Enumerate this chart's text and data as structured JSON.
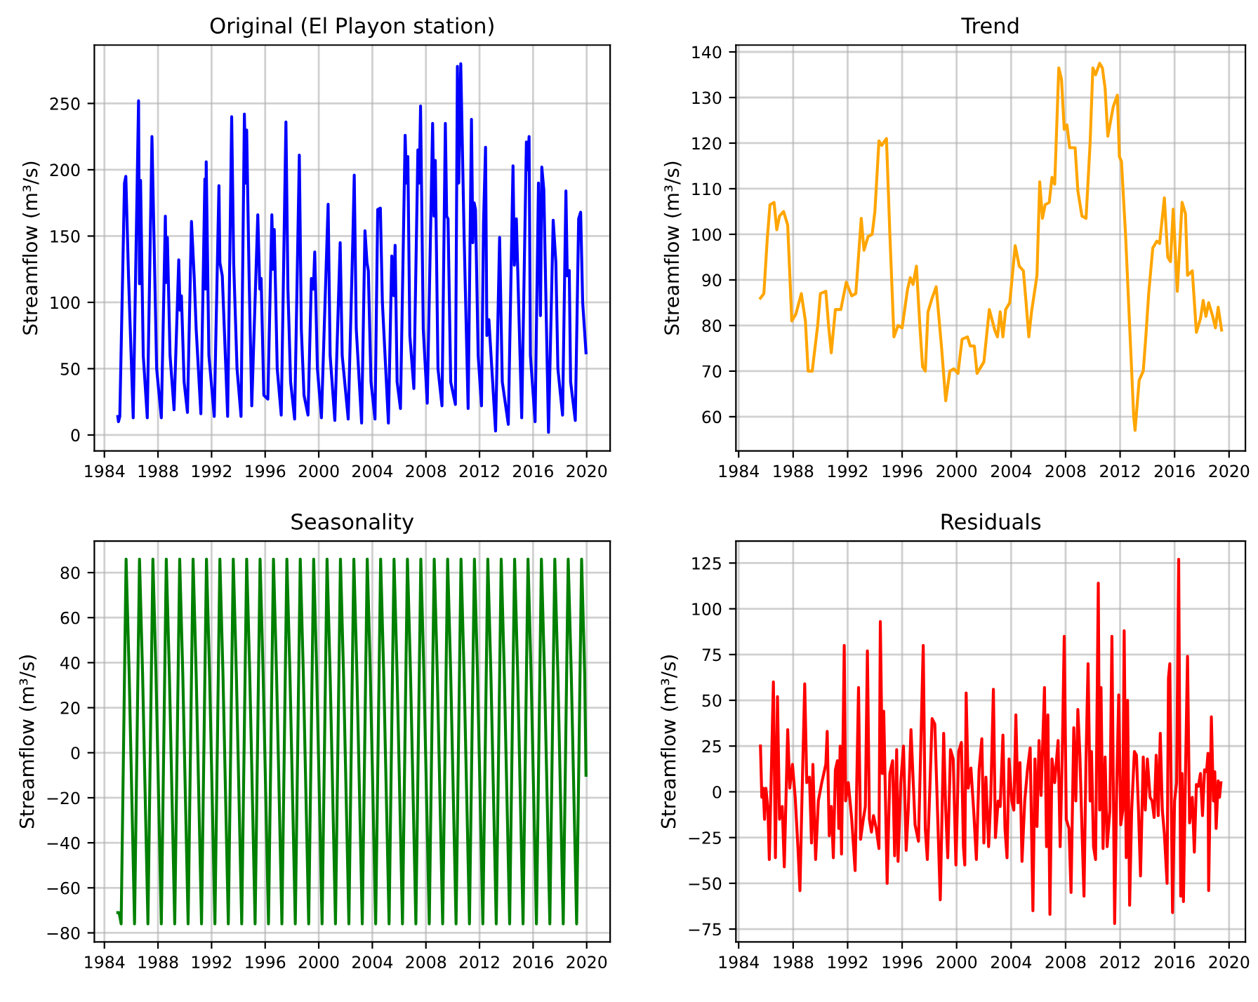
{
  "chart_data": [
    {
      "type": "line",
      "title": "Original (El Playon station)",
      "ylabel": "Streamflow (m³/s)",
      "grid": true,
      "xlim": [
        1983.25,
        2021.75
      ],
      "xticks": [
        1984,
        1988,
        1992,
        1996,
        2000,
        2004,
        2008,
        2012,
        2016,
        2020
      ],
      "ylim": [
        -12,
        294
      ],
      "yticks": [
        0,
        50,
        100,
        150,
        200,
        250
      ],
      "series": [
        {
          "color": "#0000ff",
          "x": [
            1985.0,
            1985.05,
            1985.15,
            1985.5,
            1985.6,
            1985.8,
            1986.15,
            1986.55,
            1986.62,
            1986.7,
            1986.9,
            1987.2,
            1987.55,
            1987.7,
            1987.9,
            1988.25,
            1988.55,
            1988.62,
            1988.7,
            1988.9,
            1989.2,
            1989.55,
            1989.65,
            1989.75,
            1989.95,
            1990.2,
            1990.5,
            1990.7,
            1990.85,
            1991.2,
            1991.5,
            1991.55,
            1991.6,
            1991.8,
            1992.2,
            1992.55,
            1992.62,
            1992.8,
            1993.2,
            1993.5,
            1993.65,
            1993.9,
            1994.2,
            1994.45,
            1994.55,
            1994.62,
            1994.8,
            1995.0,
            1995.45,
            1995.6,
            1995.7,
            1995.9,
            1996.2,
            1996.5,
            1996.6,
            1996.68,
            1996.9,
            1997.2,
            1997.55,
            1997.7,
            1997.9,
            1998.2,
            1998.55,
            1998.7,
            1998.9,
            1999.2,
            1999.45,
            1999.6,
            1999.7,
            1999.9,
            2000.2,
            2000.7,
            2000.85,
            2001.2,
            2001.6,
            2001.75,
            2002.2,
            2002.55,
            2002.65,
            2002.8,
            2003.2,
            2003.45,
            2003.6,
            2003.7,
            2003.9,
            2004.2,
            2004.4,
            2004.6,
            2004.75,
            2005.2,
            2005.45,
            2005.6,
            2005.7,
            2005.85,
            2006.1,
            2006.45,
            2006.55,
            2006.65,
            2006.8,
            2007.1,
            2007.4,
            2007.5,
            2007.6,
            2007.8,
            2008.1,
            2008.5,
            2008.6,
            2008.7,
            2008.9,
            2009.2,
            2009.45,
            2009.55,
            2009.65,
            2009.85,
            2010.2,
            2010.35,
            2010.45,
            2010.6,
            2010.85,
            2011.15,
            2011.4,
            2011.5,
            2011.6,
            2011.7,
            2011.9,
            2012.15,
            2012.3,
            2012.45,
            2012.55,
            2012.7,
            2013.2,
            2013.5,
            2013.7,
            2014.15,
            2014.5,
            2014.6,
            2014.75,
            2015.15,
            2015.5,
            2015.6,
            2015.7,
            2015.8,
            2016.15,
            2016.4,
            2016.55,
            2016.65,
            2016.8,
            2017.15,
            2017.5,
            2017.7,
            2017.85,
            2018.2,
            2018.45,
            2018.55,
            2018.7,
            2018.8,
            2019.15,
            2019.4,
            2019.55,
            2019.7,
            2019.95
          ],
          "values": [
            14,
            10,
            14,
            190,
            195,
            120,
            13,
            252,
            114,
            192,
            60,
            13,
            225,
            150,
            50,
            13,
            165,
            115,
            149,
            60,
            19,
            132,
            94,
            105,
            40,
            17,
            161,
            120,
            80,
            16,
            193,
            110,
            206,
            60,
            14,
            188,
            130,
            120,
            14,
            240,
            130,
            50,
            14,
            242,
            190,
            230,
            120,
            22,
            166,
            110,
            118,
            30,
            27,
            166,
            125,
            155,
            50,
            15,
            236,
            110,
            40,
            12,
            211,
            80,
            30,
            15,
            118,
            110,
            138,
            50,
            13,
            174,
            60,
            11,
            145,
            60,
            12,
            150,
            196,
            80,
            9,
            154,
            130,
            124,
            40,
            12,
            170,
            171,
            100,
            9,
            135,
            105,
            143,
            40,
            20,
            226,
            190,
            210,
            75,
            35,
            215,
            190,
            248,
            80,
            24,
            235,
            165,
            207,
            50,
            22,
            235,
            165,
            163,
            40,
            23,
            278,
            190,
            280,
            150,
            20,
            238,
            145,
            175,
            170,
            60,
            22,
            160,
            217,
            75,
            87,
            3,
            149,
            40,
            8,
            203,
            128,
            163,
            13,
            221,
            200,
            225,
            60,
            10,
            190,
            90,
            202,
            185,
            2,
            162,
            130,
            50,
            15,
            184,
            120,
            124,
            40,
            11,
            163,
            168,
            100,
            62
          ]
        }
      ]
    },
    {
      "type": "line",
      "title": "Trend",
      "ylabel": "Streamflow (m³/s)",
      "grid": true,
      "xlim": [
        1983.8,
        2021.2
      ],
      "xticks": [
        1984,
        1988,
        1992,
        1996,
        2000,
        2004,
        2008,
        2012,
        2016,
        2020
      ],
      "ylim": [
        52.5,
        141.5
      ],
      "yticks": [
        60,
        70,
        80,
        90,
        100,
        110,
        120,
        130,
        140
      ],
      "series": [
        {
          "color": "#ffa500",
          "x": [
            1985.6,
            1985.85,
            1986.1,
            1986.3,
            1986.6,
            1986.8,
            1987.0,
            1987.3,
            1987.6,
            1987.9,
            1988.2,
            1988.6,
            1988.9,
            1989.1,
            1989.4,
            1989.8,
            1990.0,
            1990.4,
            1990.6,
            1990.8,
            1991.1,
            1991.5,
            1991.9,
            1992.3,
            1992.6,
            1993.0,
            1993.2,
            1993.5,
            1993.8,
            1994.0,
            1994.3,
            1994.5,
            1994.85,
            1995.1,
            1995.4,
            1995.7,
            1996.0,
            1996.4,
            1996.6,
            1996.8,
            1997.05,
            1997.3,
            1997.5,
            1997.7,
            1997.9,
            1998.2,
            1998.5,
            1998.9,
            1999.2,
            1999.5,
            1999.8,
            2000.1,
            2000.4,
            2000.8,
            2001.0,
            2001.3,
            2001.5,
            2001.8,
            2002.0,
            2002.4,
            2002.8,
            2003.0,
            2003.2,
            2003.4,
            2003.6,
            2003.9,
            2004.3,
            2004.6,
            2004.9,
            2005.1,
            2005.3,
            2005.5,
            2005.9,
            2006.1,
            2006.3,
            2006.5,
            2006.8,
            2007.0,
            2007.2,
            2007.5,
            2007.7,
            2007.9,
            2008.1,
            2008.3,
            2008.7,
            2008.9,
            2009.2,
            2009.5,
            2009.8,
            2010.0,
            2010.2,
            2010.5,
            2010.7,
            2010.9,
            2011.1,
            2011.5,
            2011.8,
            2011.95,
            2012.1,
            2012.4,
            2012.7,
            2013.0,
            2013.1,
            2013.4,
            2013.7,
            2013.9,
            2014.1,
            2014.4,
            2014.7,
            2014.9,
            2015.25,
            2015.5,
            2015.7,
            2015.9,
            2016.2,
            2016.55,
            2016.8,
            2016.95,
            2017.3,
            2017.6,
            2017.9,
            2018.1,
            2018.3,
            2018.5,
            2018.8,
            2019.0,
            2019.2,
            2019.45
          ],
          "values": [
            86,
            87,
            99,
            106.5,
            107,
            101,
            104,
            105,
            102,
            81,
            82.5,
            87,
            81,
            70,
            70,
            80,
            87,
            87.5,
            80,
            74,
            83.5,
            83.5,
            89.5,
            86.5,
            87,
            103.5,
            96.5,
            99.5,
            100,
            105,
            120.5,
            119.5,
            121,
            100,
            77.5,
            80,
            79.5,
            88,
            90.5,
            89,
            93,
            80,
            71,
            70,
            83,
            86,
            88.5,
            75,
            63.5,
            70,
            70.5,
            69.5,
            77,
            77.5,
            75.5,
            75.5,
            69.5,
            71,
            72,
            83.5,
            79,
            77.5,
            83,
            77.5,
            83.5,
            85,
            97.5,
            93,
            92,
            85,
            77.5,
            83,
            91,
            111.5,
            103.5,
            106.5,
            107,
            112.5,
            111,
            136.5,
            134,
            123,
            124,
            119,
            119,
            109.5,
            104,
            103.5,
            120,
            136.5,
            135,
            137.5,
            136.5,
            132,
            121.5,
            128,
            130.5,
            117,
            116,
            100,
            80,
            60,
            57,
            68,
            70,
            78,
            87,
            97,
            98.5,
            98,
            108,
            95,
            94,
            105.5,
            87.5,
            107,
            104.5,
            91,
            92,
            78.5,
            81.5,
            85.5,
            82,
            85,
            82,
            79.5,
            84,
            79
          ]
        }
      ]
    },
    {
      "type": "line",
      "title": "Seasonality",
      "ylabel": "Streamflow (m³/s)",
      "grid": true,
      "xlim": [
        1983.25,
        2021.75
      ],
      "xticks": [
        1984,
        1988,
        1992,
        1996,
        2000,
        2004,
        2008,
        2012,
        2016,
        2020
      ],
      "ylim": [
        -84,
        94
      ],
      "yticks": [
        -80,
        -60,
        -40,
        -20,
        0,
        20,
        40,
        60,
        80
      ],
      "series": [
        {
          "color": "#008000",
          "x": [
            1985.0,
            1985.1,
            1985.25,
            1985.62,
            1985.85,
            1986.25,
            1986.62,
            1986.85,
            1987.25,
            1987.62,
            1987.85,
            1988.25,
            1988.62,
            1988.85,
            1989.25,
            1989.62,
            1989.85,
            1990.25,
            1990.62,
            1990.85,
            1991.25,
            1991.62,
            1991.85,
            1992.25,
            1992.62,
            1992.85,
            1993.25,
            1993.62,
            1993.85,
            1994.25,
            1994.62,
            1994.85,
            1995.25,
            1995.62,
            1995.85,
            1996.25,
            1996.62,
            1996.85,
            1997.25,
            1997.62,
            1997.85,
            1998.25,
            1998.62,
            1998.85,
            1999.25,
            1999.62,
            1999.85,
            2000.25,
            2000.62,
            2000.85,
            2001.25,
            2001.62,
            2001.85,
            2002.25,
            2002.62,
            2002.85,
            2003.25,
            2003.62,
            2003.85,
            2004.25,
            2004.62,
            2004.85,
            2005.25,
            2005.62,
            2005.85,
            2006.25,
            2006.62,
            2006.85,
            2007.25,
            2007.62,
            2007.85,
            2008.25,
            2008.62,
            2008.85,
            2009.25,
            2009.62,
            2009.85,
            2010.25,
            2010.62,
            2010.85,
            2011.25,
            2011.62,
            2011.85,
            2012.25,
            2012.62,
            2012.85,
            2013.25,
            2013.62,
            2013.85,
            2014.25,
            2014.62,
            2014.85,
            2015.25,
            2015.62,
            2015.85,
            2016.25,
            2016.62,
            2016.85,
            2017.25,
            2017.62,
            2017.85,
            2018.25,
            2018.62,
            2018.85,
            2019.25,
            2019.62,
            2019.85,
            2019.95
          ],
          "values": [
            -71,
            -71,
            -76,
            86,
            35,
            -76,
            86,
            35,
            -76,
            86,
            35,
            -76,
            86,
            35,
            -76,
            86,
            35,
            -76,
            86,
            35,
            -76,
            86,
            35,
            -76,
            86,
            35,
            -76,
            86,
            35,
            -76,
            86,
            35,
            -76,
            86,
            35,
            -76,
            86,
            35,
            -76,
            86,
            35,
            -76,
            86,
            35,
            -76,
            86,
            35,
            -76,
            86,
            35,
            -76,
            86,
            35,
            -76,
            86,
            35,
            -76,
            86,
            35,
            -76,
            86,
            35,
            -76,
            86,
            35,
            -76,
            86,
            35,
            -76,
            86,
            35,
            -76,
            86,
            35,
            -76,
            86,
            35,
            -76,
            86,
            35,
            -76,
            86,
            35,
            -76,
            86,
            35,
            -76,
            86,
            35,
            -76,
            86,
            35,
            -76,
            86,
            35,
            -76,
            86,
            35,
            -76,
            86,
            35,
            -76,
            86,
            35,
            -76,
            86,
            35,
            -10
          ]
        }
      ]
    },
    {
      "type": "line",
      "title": "Residuals",
      "ylabel": "Streamflow (m³/s)",
      "grid": true,
      "xlim": [
        1983.8,
        2021.2
      ],
      "xticks": [
        1984,
        1988,
        1992,
        1996,
        2000,
        2004,
        2008,
        2012,
        2016,
        2020
      ],
      "ylim": [
        -82,
        137
      ],
      "yticks": [
        -75,
        -50,
        -25,
        0,
        25,
        50,
        75,
        100,
        125
      ],
      "series": [
        {
          "color": "#ff0000",
          "x": [
            1985.6,
            1985.7,
            1985.8,
            1985.9,
            1986.0,
            1986.15,
            1986.25,
            1986.55,
            1986.7,
            1986.85,
            1987.0,
            1987.2,
            1987.35,
            1987.6,
            1987.75,
            1987.95,
            1988.15,
            1988.35,
            1988.5,
            1988.65,
            1988.85,
            1989.0,
            1989.2,
            1989.35,
            1989.45,
            1989.65,
            1989.85,
            1990.1,
            1990.4,
            1990.5,
            1990.65,
            1990.8,
            1990.95,
            1991.1,
            1991.25,
            1991.35,
            1991.45,
            1991.55,
            1991.75,
            1991.85,
            1992.05,
            1992.3,
            1992.55,
            1992.8,
            1992.95,
            1993.15,
            1993.3,
            1993.45,
            1993.6,
            1993.75,
            1993.9,
            1994.1,
            1994.3,
            1994.4,
            1994.55,
            1994.65,
            1994.9,
            1995.1,
            1995.3,
            1995.45,
            1995.6,
            1995.7,
            1995.9,
            1996.1,
            1996.3,
            1996.45,
            1996.65,
            1996.8,
            1996.95,
            1997.2,
            1997.55,
            1997.7,
            1997.85,
            1998.05,
            1998.2,
            1998.4,
            1998.8,
            1999.05,
            1999.2,
            1999.35,
            1999.55,
            1999.75,
            1999.95,
            2000.15,
            2000.35,
            2000.5,
            2000.6,
            2000.7,
            2000.85,
            2001.05,
            2001.25,
            2001.45,
            2001.65,
            2001.85,
            2002.0,
            2002.15,
            2002.35,
            2002.5,
            2002.7,
            2002.85,
            2003.05,
            2003.2,
            2003.4,
            2003.55,
            2003.7,
            2003.85,
            2004.05,
            2004.2,
            2004.35,
            2004.5,
            2004.65,
            2004.8,
            2005.0,
            2005.2,
            2005.4,
            2005.6,
            2005.75,
            2005.9,
            2006.05,
            2006.2,
            2006.45,
            2006.6,
            2006.7,
            2006.85,
            2007.0,
            2007.2,
            2007.45,
            2007.6,
            2007.75,
            2007.9,
            2008.05,
            2008.25,
            2008.4,
            2008.6,
            2008.75,
            2008.9,
            2009.05,
            2009.2,
            2009.35,
            2009.5,
            2009.65,
            2009.8,
            2009.9,
            2010.05,
            2010.2,
            2010.4,
            2010.5,
            2010.6,
            2010.75,
            2010.9,
            2011.05,
            2011.25,
            2011.4,
            2011.6,
            2011.75,
            2011.9,
            2012.05,
            2012.2,
            2012.3,
            2012.45,
            2012.55,
            2012.7,
            2012.85,
            2013.05,
            2013.2,
            2013.35,
            2013.5,
            2013.7,
            2013.85,
            2014.0,
            2014.2,
            2014.35,
            2014.5,
            2014.65,
            2014.8,
            2014.95,
            2015.1,
            2015.25,
            2015.45,
            2015.55,
            2015.65,
            2015.85,
            2016.0,
            2016.15,
            2016.3,
            2016.45,
            2016.55,
            2016.65,
            2016.8,
            2016.95,
            2017.1,
            2017.3,
            2017.45,
            2017.6,
            2017.75,
            2017.9,
            2018.05,
            2018.2,
            2018.35,
            2018.45,
            2018.5,
            2018.7,
            2018.85,
            2018.95,
            2019.05,
            2019.2,
            2019.3,
            2019.4
          ],
          "values": [
            25,
            -3,
            2,
            -15,
            2,
            -10,
            -37,
            60,
            -36,
            52,
            -15,
            -8,
            -41,
            34,
            2,
            15,
            -3,
            -30,
            -54,
            -3,
            59,
            5,
            8,
            -28,
            15,
            -37,
            -5,
            5,
            15,
            33,
            -24,
            -8,
            -36,
            12,
            17,
            -20,
            25,
            -34,
            80,
            -5,
            5,
            -15,
            -43,
            57,
            -26,
            -15,
            -8,
            77,
            -15,
            -22,
            -13,
            -20,
            -31,
            93,
            10,
            44,
            -50,
            10,
            17,
            -35,
            23,
            -38,
            5,
            25,
            -32,
            -10,
            34,
            8,
            -18,
            -27,
            80,
            -20,
            -37,
            5,
            40,
            37,
            -59,
            32,
            -10,
            -36,
            23,
            18,
            -40,
            22,
            27,
            -30,
            -40,
            54,
            2,
            13,
            -10,
            -37,
            12,
            29,
            -28,
            8,
            -30,
            -5,
            56,
            -25,
            -5,
            -8,
            31,
            -20,
            -36,
            18,
            -5,
            -10,
            42,
            -6,
            16,
            -38,
            -5,
            12,
            24,
            -65,
            18,
            -19,
            28,
            -2,
            57,
            -30,
            42,
            -67,
            18,
            5,
            28,
            -30,
            18,
            85,
            -15,
            -20,
            -55,
            35,
            -5,
            45,
            20,
            -20,
            -57,
            18,
            70,
            -5,
            22,
            -30,
            -37,
            114,
            -10,
            57,
            -31,
            19,
            -30,
            -10,
            85,
            -72,
            2,
            53,
            -18,
            -10,
            88,
            -36,
            50,
            -62,
            -10,
            22,
            20,
            -10,
            -46,
            19,
            -10,
            18,
            -3,
            -5,
            -14,
            20,
            -13,
            32,
            -10,
            -23,
            -50,
            62,
            70,
            -66,
            -5,
            5,
            127,
            -57,
            10,
            -60,
            10,
            74,
            -17,
            -3,
            -33,
            4,
            3,
            10,
            -13,
            12,
            11,
            21,
            -54,
            41,
            -5,
            11,
            -20,
            6,
            -3,
            5
          ]
        }
      ]
    }
  ]
}
